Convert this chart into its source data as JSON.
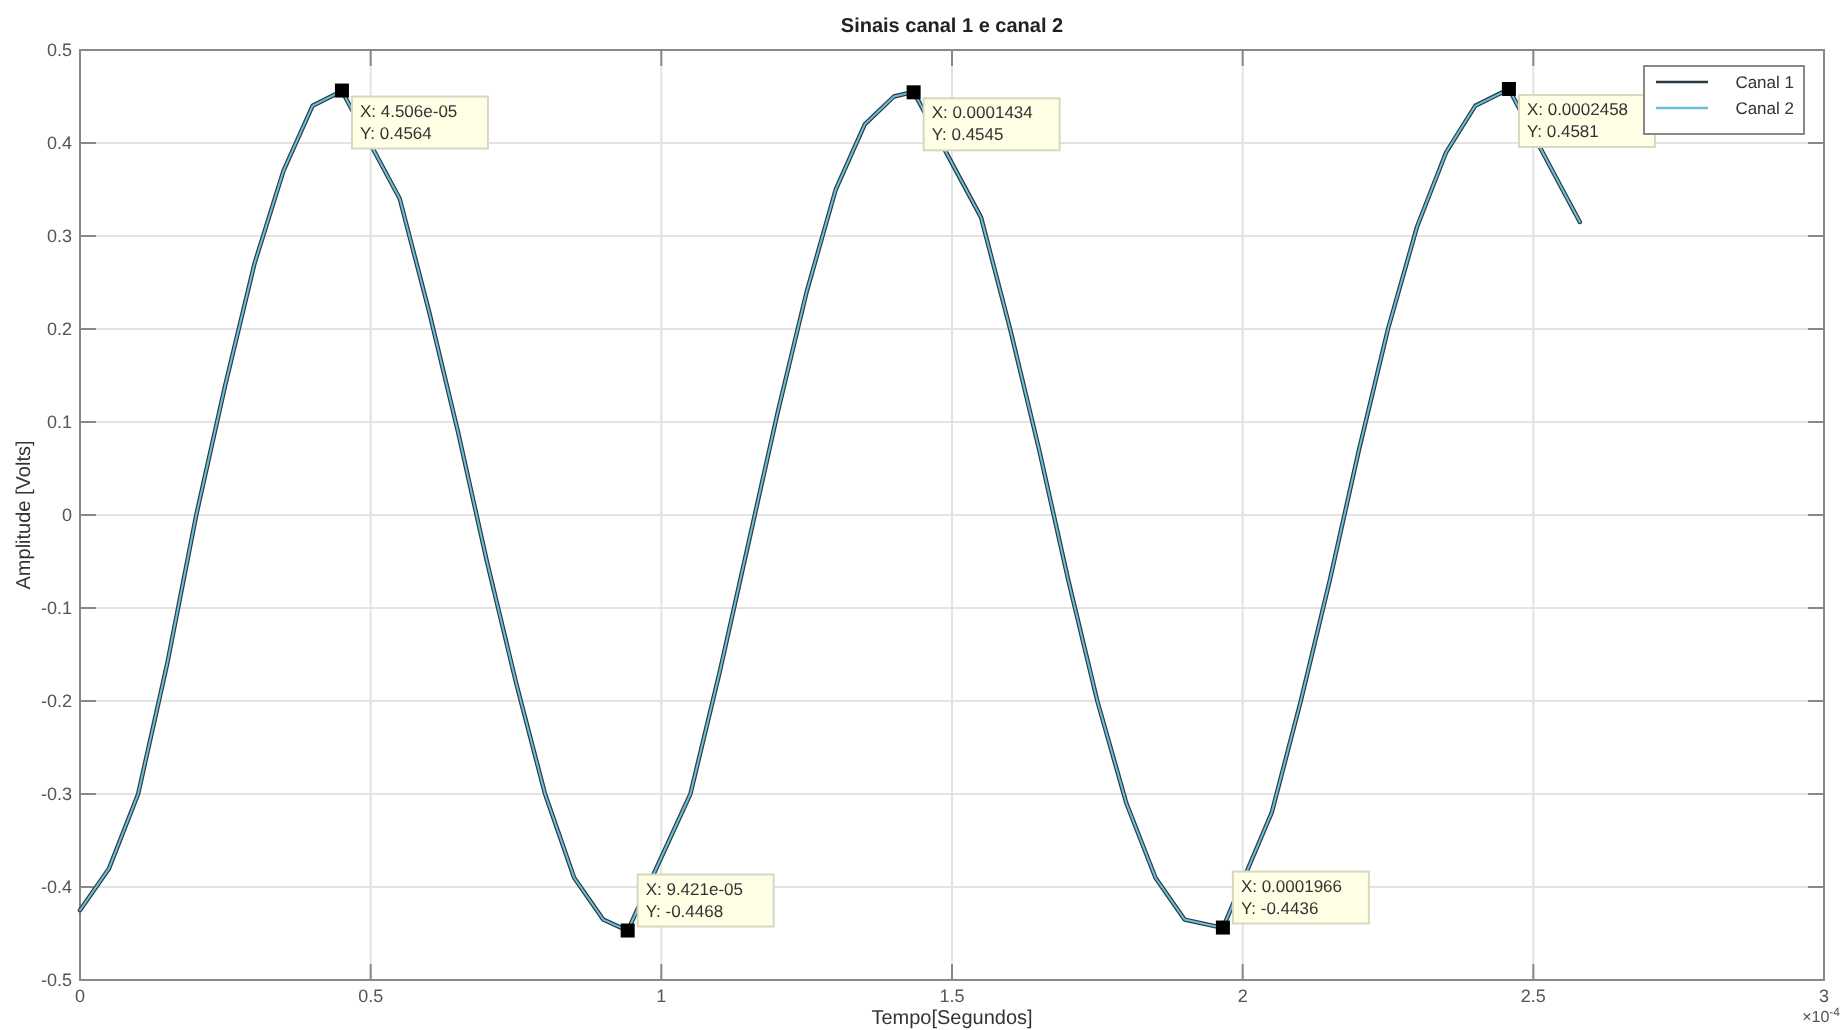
{
  "chart_data": {
    "type": "line",
    "title": "Sinais canal 1 e canal 2",
    "xlabel": "Tempo[Segundos]",
    "ylabel": "Amplitude [Volts]",
    "x": [
      0,
      0.05,
      0.1,
      0.15,
      0.2,
      0.25,
      0.3,
      0.35,
      0.4,
      0.4506,
      0.55,
      0.6,
      0.65,
      0.7,
      0.75,
      0.8,
      0.85,
      0.9,
      0.9421,
      1.05,
      1.1,
      1.15,
      1.2,
      1.25,
      1.3,
      1.35,
      1.4,
      1.434,
      1.55,
      1.6,
      1.65,
      1.7,
      1.75,
      1.8,
      1.85,
      1.9,
      1.966,
      2.05,
      2.1,
      2.15,
      2.2,
      2.25,
      2.3,
      2.35,
      2.4,
      2.458,
      2.55,
      2.58
    ],
    "series": [
      {
        "name": "Canal 1",
        "color": "#2b3a42",
        "values": [
          -0.425,
          -0.38,
          -0.3,
          -0.16,
          0.0,
          0.14,
          0.27,
          0.37,
          0.44,
          0.456,
          0.34,
          0.22,
          0.09,
          -0.05,
          -0.18,
          -0.3,
          -0.39,
          -0.435,
          -0.447,
          -0.3,
          -0.17,
          -0.03,
          0.11,
          0.24,
          0.35,
          0.42,
          0.45,
          0.455,
          0.32,
          0.2,
          0.07,
          -0.07,
          -0.2,
          -0.31,
          -0.39,
          -0.435,
          -0.444,
          -0.32,
          -0.2,
          -0.07,
          0.07,
          0.2,
          0.31,
          0.39,
          0.44,
          0.458,
          0.35,
          0.315
        ]
      },
      {
        "name": "Canal 2",
        "color": "#6cc0dc",
        "values": [
          -0.425,
          -0.38,
          -0.3,
          -0.16,
          0.0,
          0.14,
          0.27,
          0.37,
          0.44,
          0.456,
          0.34,
          0.22,
          0.09,
          -0.05,
          -0.18,
          -0.3,
          -0.39,
          -0.435,
          -0.447,
          -0.3,
          -0.17,
          -0.03,
          0.11,
          0.24,
          0.35,
          0.42,
          0.45,
          0.455,
          0.32,
          0.2,
          0.07,
          -0.07,
          -0.2,
          -0.31,
          -0.39,
          -0.435,
          -0.444,
          -0.32,
          -0.2,
          -0.07,
          0.07,
          0.2,
          0.31,
          0.39,
          0.44,
          0.458,
          0.35,
          0.315
        ]
      }
    ],
    "xlim": [
      0,
      3
    ],
    "xticks": [
      0,
      0.5,
      1,
      1.5,
      2,
      2.5,
      3
    ],
    "ylim": [
      -0.5,
      0.5
    ],
    "yticks": [
      -0.5,
      -0.4,
      -0.3,
      -0.2,
      -0.1,
      0,
      0.1,
      0.2,
      0.3,
      0.4,
      0.5
    ],
    "grid": true,
    "legend": "top right",
    "marker": "none",
    "line_style": "solid",
    "annotations": [
      {
        "text": "X: 4.506e-05\nY: 0.4564",
        "x": 0.4506,
        "y": 0.4564
      },
      {
        "text": "X: 9.421e-05\nY: -0.4468",
        "x": 0.9421,
        "y": -0.4468
      },
      {
        "text": "X: 0.0001434\nY: 0.4545",
        "x": 1.434,
        "y": 0.4545
      },
      {
        "text": "X: 0.0001966\nY: -0.4436",
        "x": 1.966,
        "y": -0.4436
      },
      {
        "text": "X: 0.0002458\nY: 0.4581",
        "x": 2.458,
        "y": 0.4581
      },
      "×10$^{-4}$"
    ]
  }
}
